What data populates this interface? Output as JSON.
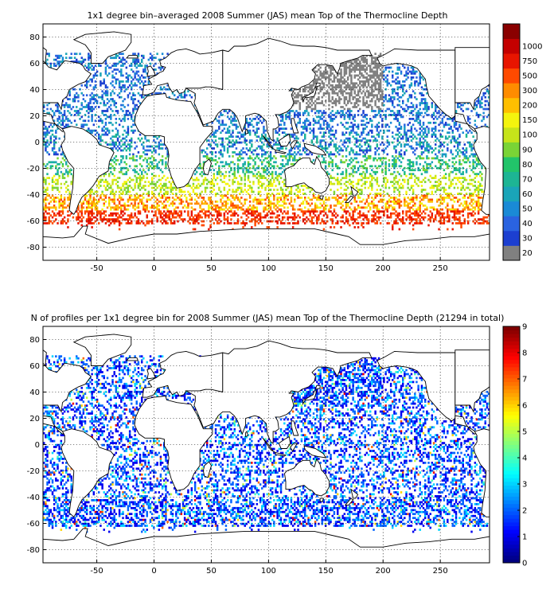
{
  "chart_data": [
    {
      "type": "heatmap",
      "title": "1x1 degree bin–averaged 2008 Summer (JAS) mean Top of the Thermocline Depth",
      "x_ticks": [
        "-50",
        "0",
        "50",
        "100",
        "150",
        "200",
        "250"
      ],
      "y_ticks": [
        "80",
        "60",
        "40",
        "20",
        "0",
        "-20",
        "-40",
        "-60",
        "-80"
      ],
      "xlim": [
        -97,
        293
      ],
      "ylim": [
        -90,
        90
      ],
      "grid": true,
      "colorbar": {
        "labels": [
          "20",
          "30",
          "40",
          "50",
          "60",
          "70",
          "80",
          "90",
          "100",
          "150",
          "200",
          "300",
          "500",
          "750",
          "1000"
        ],
        "colors": [
          "#808080",
          "#1c3fd0",
          "#2a63e0",
          "#1a8ad6",
          "#1aa5b8",
          "#1db594",
          "#22c46a",
          "#7ad436",
          "#c6e41a",
          "#f4f40e",
          "#ffbf00",
          "#ff8c00",
          "#ff4a00",
          "#e81500",
          "#c40000",
          "#8a0000"
        ],
        "placement": "right"
      }
    },
    {
      "type": "heatmap",
      "title": "N of profiles per 1x1 degree bin for 2008 Summer (JAS) mean Top of the Thermocline Depth  (21294 in total)",
      "x_ticks": [
        "-50",
        "0",
        "50",
        "100",
        "150",
        "200",
        "250"
      ],
      "y_ticks": [
        "80",
        "60",
        "40",
        "20",
        "0",
        "-20",
        "-40",
        "-60",
        "-80"
      ],
      "xlim": [
        -97,
        293
      ],
      "ylim": [
        -90,
        90
      ],
      "grid": true,
      "colorbar": {
        "labels": [
          "0",
          "1",
          "2",
          "3",
          "4",
          "5",
          "6",
          "7",
          "8",
          "9"
        ],
        "vmin": 0,
        "vmax": 9,
        "colormap": "jet",
        "placement": "right"
      }
    }
  ]
}
